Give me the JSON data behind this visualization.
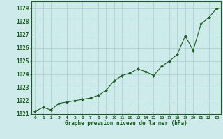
{
  "x": [
    0,
    1,
    2,
    3,
    4,
    5,
    6,
    7,
    8,
    9,
    10,
    11,
    12,
    13,
    14,
    15,
    16,
    17,
    18,
    19,
    20,
    21,
    22,
    23
  ],
  "y": [
    1021.2,
    1021.5,
    1021.3,
    1021.8,
    1021.9,
    1022.0,
    1022.1,
    1022.2,
    1022.4,
    1022.8,
    1023.5,
    1023.9,
    1024.1,
    1024.4,
    1024.2,
    1023.9,
    1024.6,
    1025.0,
    1025.5,
    1026.9,
    1025.8,
    1027.8,
    1028.3,
    1029.0
  ],
  "line_color": "#1a5e1a",
  "marker_color": "#1a5e1a",
  "bg_color": "#ceeaea",
  "grid_color": "#a8d4d4",
  "xlabel": "Graphe pression niveau de la mer (hPa)",
  "xlabel_color": "#1a5e1a",
  "tick_color": "#1a5e1a",
  "ylim_min": 1021.0,
  "ylim_max": 1029.5,
  "yticks": [
    1021,
    1022,
    1023,
    1024,
    1025,
    1026,
    1027,
    1028,
    1029
  ],
  "xticks": [
    0,
    1,
    2,
    3,
    4,
    5,
    6,
    7,
    8,
    9,
    10,
    11,
    12,
    13,
    14,
    15,
    16,
    17,
    18,
    19,
    20,
    21,
    22,
    23
  ]
}
